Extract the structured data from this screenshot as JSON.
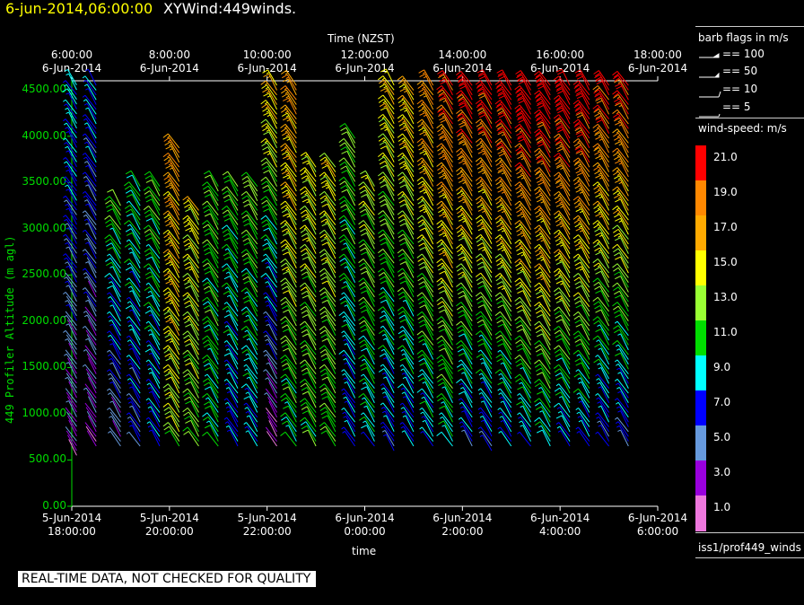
{
  "header": {
    "datetime": "6-jun-2014,06:00:00",
    "plot_name": "XYWind:449winds."
  },
  "notice": "REAL-TIME DATA, NOT CHECKED FOR QUALITY",
  "footer_source": "iss1/prof449_winds",
  "legend": {
    "barb_title": "barb flags in m/s",
    "barb_entries": [
      "== 100",
      "== 50",
      "== 10",
      "== 5"
    ],
    "speed_title": "wind-speed: m/s",
    "speed_bins": [
      {
        "label": "21.0",
        "color": "#ff0000"
      },
      {
        "label": "19.0",
        "color": "#ff8800"
      },
      {
        "label": "17.0",
        "color": "#ffaa00"
      },
      {
        "label": "15.0",
        "color": "#ffff00"
      },
      {
        "label": "13.0",
        "color": "#99ff33"
      },
      {
        "label": "11.0",
        "color": "#00dd00"
      },
      {
        "label": "9.0",
        "color": "#00ffff"
      },
      {
        "label": "7.0",
        "color": "#0000ff"
      },
      {
        "label": "5.0",
        "color": "#6699dd"
      },
      {
        "label": "3.0",
        "color": "#9900dd"
      },
      {
        "label": "1.0",
        "color": "#ee77dd"
      }
    ]
  },
  "chart_data": {
    "type": "scatter",
    "subtype": "wind-barb",
    "top_xlabel": "Time (NZST)",
    "xlabel": "time",
    "ylabel": "449 Profiler Altitude (m agl)",
    "ylim": [
      0,
      4600
    ],
    "yticks": [
      "0.00",
      "500.00",
      "1000.00",
      "1500.00",
      "2000.00",
      "2500.00",
      "3000.00",
      "3500.00",
      "4000.00",
      "4500.00"
    ],
    "ytick_values": [
      0,
      500,
      1000,
      1500,
      2000,
      2500,
      3000,
      3500,
      4000,
      4500
    ],
    "top_xticks": [
      {
        "time": "6:00:00",
        "date": "6-Jun-2014"
      },
      {
        "time": "8:00:00",
        "date": "6-Jun-2014"
      },
      {
        "time": "10:00:00",
        "date": "6-Jun-2014"
      },
      {
        "time": "12:00:00",
        "date": "6-Jun-2014"
      },
      {
        "time": "14:00:00",
        "date": "6-Jun-2014"
      },
      {
        "time": "16:00:00",
        "date": "6-Jun-2014"
      },
      {
        "time": "18:00:00",
        "date": "6-Jun-2014"
      }
    ],
    "bottom_xticks": [
      {
        "date": "5-Jun-2014",
        "time": "18:00:00"
      },
      {
        "date": "5-Jun-2014",
        "time": "20:00:00"
      },
      {
        "date": "5-Jun-2014",
        "time": "22:00:00"
      },
      {
        "date": "6-Jun-2014",
        "time": "0:00:00"
      },
      {
        "date": "6-Jun-2014",
        "time": "2:00:00"
      },
      {
        "date": "6-Jun-2014",
        "time": "4:00:00"
      },
      {
        "date": "6-Jun-2014",
        "time": "6:00:00"
      }
    ],
    "x_hours_range": [
      0,
      12
    ],
    "profiles": [
      {
        "t": 0.1,
        "top": 4600,
        "min": 550,
        "speed_low": 3,
        "speed_high": 9
      },
      {
        "t": 0.5,
        "top": 4600,
        "min": 650,
        "speed_low": 3,
        "speed_high": 8
      },
      {
        "t": 1.0,
        "top": 3300,
        "min": 650,
        "speed_low": 4,
        "speed_high": 12
      },
      {
        "t": 1.4,
        "top": 3500,
        "min": 650,
        "speed_low": 6,
        "speed_high": 11
      },
      {
        "t": 1.8,
        "top": 3500,
        "min": 650,
        "speed_low": 7,
        "speed_high": 12
      },
      {
        "t": 2.2,
        "top": 3900,
        "min": 650,
        "speed_low": 13,
        "speed_high": 18
      },
      {
        "t": 2.6,
        "top": 3200,
        "min": 650,
        "speed_low": 12,
        "speed_high": 15
      },
      {
        "t": 3.0,
        "top": 3500,
        "min": 650,
        "speed_low": 10,
        "speed_high": 12
      },
      {
        "t": 3.4,
        "top": 3500,
        "min": 650,
        "speed_low": 7,
        "speed_high": 12
      },
      {
        "t": 3.8,
        "top": 3500,
        "min": 650,
        "speed_low": 8,
        "speed_high": 13
      },
      {
        "t": 4.2,
        "top": 4600,
        "min": 650,
        "speed_low": 2,
        "speed_high": 17
      },
      {
        "t": 4.6,
        "top": 4600,
        "min": 650,
        "speed_low": 10,
        "speed_high": 18
      },
      {
        "t": 5.0,
        "top": 3700,
        "min": 650,
        "speed_low": 11,
        "speed_high": 15
      },
      {
        "t": 5.4,
        "top": 3700,
        "min": 650,
        "speed_low": 11,
        "speed_high": 15
      },
      {
        "t": 5.8,
        "top": 4000,
        "min": 650,
        "speed_low": 7,
        "speed_high": 13
      },
      {
        "t": 6.2,
        "top": 3500,
        "min": 650,
        "speed_low": 9,
        "speed_high": 14
      },
      {
        "t": 6.6,
        "top": 4600,
        "min": 600,
        "speed_low": 7,
        "speed_high": 16
      },
      {
        "t": 7.0,
        "top": 4500,
        "min": 650,
        "speed_low": 7,
        "speed_high": 17
      },
      {
        "t": 7.4,
        "top": 4600,
        "min": 650,
        "speed_low": 8,
        "speed_high": 19
      },
      {
        "t": 7.8,
        "top": 4600,
        "min": 650,
        "speed_low": 9,
        "speed_high": 21
      },
      {
        "t": 8.2,
        "top": 4600,
        "min": 650,
        "speed_low": 7,
        "speed_high": 22
      },
      {
        "t": 8.6,
        "top": 4600,
        "min": 600,
        "speed_low": 6,
        "speed_high": 22
      },
      {
        "t": 9.0,
        "top": 4600,
        "min": 650,
        "speed_low": 7,
        "speed_high": 23
      },
      {
        "t": 9.4,
        "top": 4600,
        "min": 650,
        "speed_low": 8,
        "speed_high": 23
      },
      {
        "t": 9.8,
        "top": 4600,
        "min": 650,
        "speed_low": 9,
        "speed_high": 23
      },
      {
        "t": 10.2,
        "top": 4600,
        "min": 650,
        "speed_low": 8,
        "speed_high": 23
      },
      {
        "t": 10.6,
        "top": 4600,
        "min": 650,
        "speed_low": 7,
        "speed_high": 23
      },
      {
        "t": 11.0,
        "top": 4600,
        "min": 650,
        "speed_low": 6,
        "speed_high": 22
      },
      {
        "t": 11.4,
        "top": 4600,
        "min": 650,
        "speed_low": 6,
        "speed_high": 21
      }
    ],
    "grid": false
  }
}
